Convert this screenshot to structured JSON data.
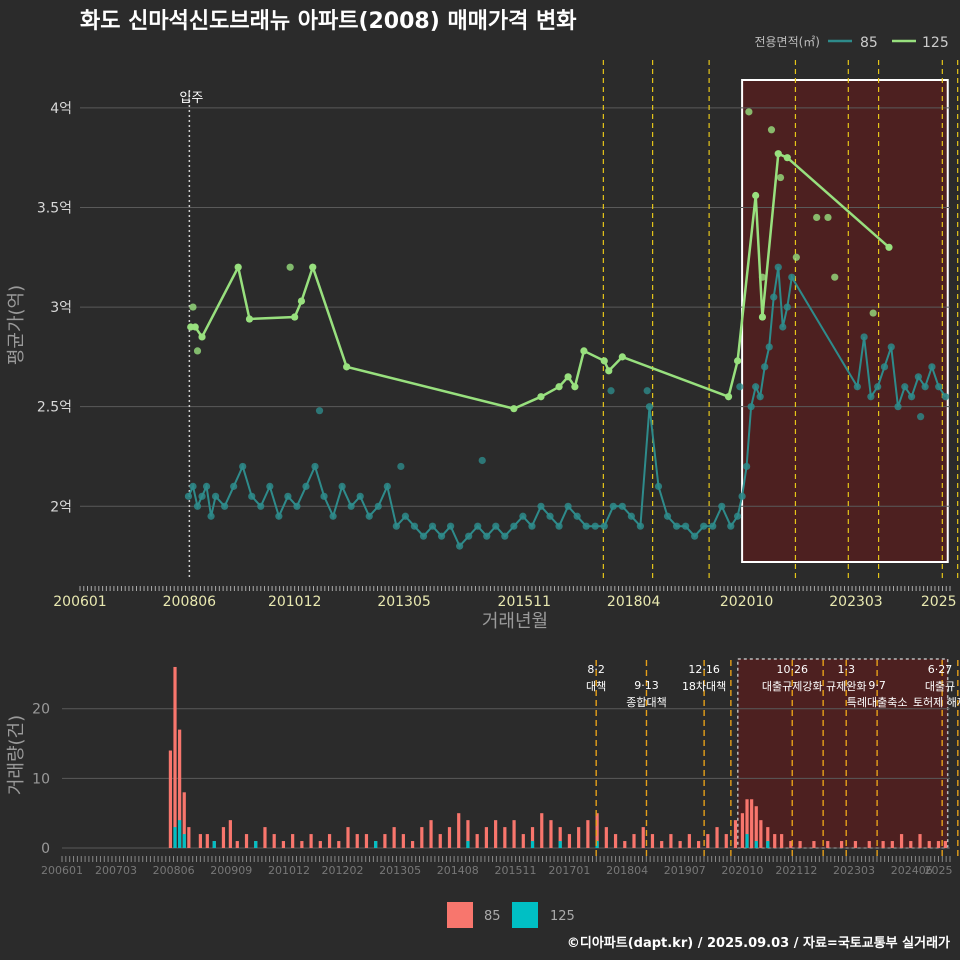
{
  "title": "화도 신마석신도브래뉴 아파트(2008) 매매가격 변화",
  "footer": "©디아파트(dapt.kr) / 2025.09.03 / 자료=국토교통부 실거래가",
  "colors": {
    "background": "#2b2b2b",
    "grid": "#5a5a5a",
    "series85": "#2e8b8b",
    "series125": "#98e07e",
    "bar85": "#f8766d",
    "bar125": "#00bfc4",
    "policy": "#e6c619",
    "policyBottom": "#e6a019",
    "highlight": "#5a1e1e",
    "boxWhite": "#ffffff"
  },
  "chart_data": [
    {
      "type": "line",
      "title": "화도 신마석신도브래뉴 아파트(2008) 매매가격 변화",
      "xlabel": "거래년월",
      "ylabel": "평균가(억)",
      "xlim": [
        2006.0,
        2025.25
      ],
      "ylim": [
        1.63,
        4.18
      ],
      "x_ticks": [
        {
          "v": 2006.0,
          "label": "200601"
        },
        {
          "v": 2008.42,
          "label": "200806"
        },
        {
          "v": 2010.75,
          "label": "201012"
        },
        {
          "v": 2013.17,
          "label": "201305"
        },
        {
          "v": 2015.83,
          "label": "201511"
        },
        {
          "v": 2018.25,
          "label": "201804"
        },
        {
          "v": 2020.75,
          "label": "202010"
        },
        {
          "v": 2023.17,
          "label": "202303"
        },
        {
          "v": 2025.0,
          "label": "2025"
        }
      ],
      "y_ticks": [
        {
          "v": 2.0,
          "label": "2억"
        },
        {
          "v": 2.5,
          "label": "2.5억"
        },
        {
          "v": 3.0,
          "label": "3억"
        },
        {
          "v": 3.5,
          "label": "3.5억"
        },
        {
          "v": 4.0,
          "label": "4억"
        }
      ],
      "legend_title": "전용면적(㎡)",
      "legend": [
        "85",
        "125"
      ],
      "move_in": {
        "x": 2008.42,
        "label": "입주"
      },
      "highlight_x": [
        2020.65,
        2025.2
      ],
      "policy_x": [
        2017.58,
        2018.67,
        2019.92,
        2021.83,
        2023.0,
        2023.67,
        2025.08,
        2025.42
      ],
      "series": [
        {
          "name": "125",
          "x": [
            2008.45,
            2008.55,
            2008.7,
            2009.5,
            2009.75,
            2010.75,
            2010.9,
            2011.15,
            2011.9,
            2015.6,
            2016.2,
            2016.6,
            2016.8,
            2016.95,
            2017.15,
            2017.6,
            2017.7,
            2018.0,
            2020.35,
            2020.55,
            2020.95,
            2021.1,
            2021.45,
            2021.65,
            2023.9
          ],
          "values": [
            2.9,
            2.9,
            2.85,
            3.2,
            2.94,
            2.95,
            3.03,
            3.2,
            2.7,
            2.49,
            2.55,
            2.6,
            2.65,
            2.6,
            2.78,
            2.73,
            2.68,
            2.75,
            2.55,
            2.73,
            3.56,
            2.95,
            3.77,
            3.75,
            3.3
          ]
        },
        {
          "name": "85",
          "x": [
            2008.4,
            2008.5,
            2008.6,
            2008.7,
            2008.8,
            2008.9,
            2009.0,
            2009.2,
            2009.4,
            2009.6,
            2009.8,
            2010.0,
            2010.2,
            2010.4,
            2010.6,
            2010.8,
            2011.0,
            2011.2,
            2011.4,
            2011.6,
            2011.8,
            2012.0,
            2012.2,
            2012.4,
            2012.6,
            2012.8,
            2013.0,
            2013.2,
            2013.4,
            2013.6,
            2013.8,
            2014.0,
            2014.2,
            2014.4,
            2014.6,
            2014.8,
            2015.0,
            2015.2,
            2015.4,
            2015.6,
            2015.8,
            2016.0,
            2016.2,
            2016.4,
            2016.6,
            2016.8,
            2017.0,
            2017.2,
            2017.4,
            2017.6,
            2017.8,
            2018.0,
            2018.2,
            2018.4,
            2018.6,
            2018.8,
            2019.0,
            2019.2,
            2019.4,
            2019.6,
            2019.8,
            2020.0,
            2020.2,
            2020.4,
            2020.55,
            2020.65,
            2020.75,
            2020.85,
            2020.95,
            2021.05,
            2021.15,
            2021.25,
            2021.35,
            2021.45,
            2021.55,
            2021.65,
            2021.75,
            2023.2,
            2023.35,
            2023.5,
            2023.65,
            2023.8,
            2023.95,
            2024.1,
            2024.25,
            2024.4,
            2024.55,
            2024.7,
            2024.85,
            2025.0,
            2025.15
          ],
          "values": [
            2.05,
            2.1,
            2.0,
            2.05,
            2.1,
            1.95,
            2.05,
            2.0,
            2.1,
            2.2,
            2.05,
            2.0,
            2.1,
            1.95,
            2.05,
            2.0,
            2.1,
            2.2,
            2.05,
            1.95,
            2.1,
            2.0,
            2.05,
            1.95,
            2.0,
            2.1,
            1.9,
            1.95,
            1.9,
            1.85,
            1.9,
            1.85,
            1.9,
            1.8,
            1.85,
            1.9,
            1.85,
            1.9,
            1.85,
            1.9,
            1.95,
            1.9,
            2.0,
            1.95,
            1.9,
            2.0,
            1.95,
            1.9,
            1.9,
            1.9,
            2.0,
            2.0,
            1.95,
            1.9,
            2.5,
            2.1,
            1.95,
            1.9,
            1.9,
            1.85,
            1.9,
            1.9,
            2.0,
            1.9,
            1.95,
            2.05,
            2.2,
            2.5,
            2.6,
            2.55,
            2.7,
            2.8,
            3.05,
            3.2,
            2.9,
            3.0,
            3.15,
            2.6,
            2.85,
            2.55,
            2.6,
            2.7,
            2.8,
            2.5,
            2.6,
            2.55,
            2.65,
            2.6,
            2.7,
            2.6,
            2.55
          ]
        }
      ],
      "scatter_extra": {
        "x": [
          2008.5,
          2008.6,
          2010.65,
          2011.3,
          2013.1,
          2014.9,
          2017.75,
          2018.55,
          2020.6,
          2020.8,
          2021.1,
          2021.3,
          2021.5,
          2021.85,
          2022.3,
          2022.55,
          2022.7,
          2023.55,
          2024.6
        ],
        "values": [
          3.0,
          2.78,
          3.2,
          2.48,
          2.2,
          2.23,
          2.58,
          2.58,
          2.6,
          3.98,
          3.15,
          3.89,
          3.65,
          3.25,
          3.45,
          3.45,
          3.15,
          2.97,
          2.45
        ]
      }
    },
    {
      "type": "bar",
      "ylabel": "거래량(건)",
      "xlim": [
        2006.0,
        2025.25
      ],
      "ylim": [
        0,
        27
      ],
      "y_ticks": [
        0,
        10,
        20
      ],
      "x_ticks": [
        {
          "v": 2006.0,
          "label": "200601"
        },
        {
          "v": 2007.17,
          "label": "200703"
        },
        {
          "v": 2008.42,
          "label": "200806"
        },
        {
          "v": 2009.67,
          "label": "200909"
        },
        {
          "v": 2010.92,
          "label": "201012"
        },
        {
          "v": 2012.08,
          "label": "201202"
        },
        {
          "v": 2013.33,
          "label": "201305"
        },
        {
          "v": 2014.58,
          "label": "201408"
        },
        {
          "v": 2015.83,
          "label": "201511"
        },
        {
          "v": 2017.0,
          "label": "201701"
        },
        {
          "v": 2018.25,
          "label": "201804"
        },
        {
          "v": 2019.5,
          "label": "201907"
        },
        {
          "v": 2020.75,
          "label": "202010"
        },
        {
          "v": 2021.92,
          "label": "202112"
        },
        {
          "v": 2023.17,
          "label": "202303"
        },
        {
          "v": 2024.42,
          "label": "202406"
        },
        {
          "v": 2025.0,
          "label": "2025"
        }
      ],
      "legend": [
        "85",
        "125"
      ],
      "highlight_x": [
        2020.65,
        2025.2
      ],
      "policy": [
        {
          "x": 2017.58,
          "date": "8·2",
          "name": "대책"
        },
        {
          "x": 2018.67,
          "date": "9·13",
          "name": "종합대책"
        },
        {
          "x": 2019.92,
          "date": "12·16",
          "name": "18차대책"
        },
        {
          "x": 2020.5,
          "date": "",
          "name": ""
        },
        {
          "x": 2021.83,
          "date": "10·26",
          "name": "대출규제강화"
        },
        {
          "x": 2022.5,
          "date": "",
          "name": ""
        },
        {
          "x": 2023.0,
          "date": "1·3",
          "name": "규제완화"
        },
        {
          "x": 2023.67,
          "date": "9·7",
          "name": "특례대출축소"
        },
        {
          "x": 2025.08,
          "date": "6·27",
          "name": "대출규"
        },
        {
          "x": 2025.42,
          "date": "",
          "name": "토허제 해제"
        }
      ],
      "series": [
        {
          "name": "85",
          "x": [
            2008.35,
            2008.45,
            2008.55,
            2008.65,
            2008.75,
            2009.0,
            2009.15,
            2009.3,
            2009.5,
            2009.65,
            2009.8,
            2010.0,
            2010.2,
            2010.4,
            2010.6,
            2010.8,
            2011.0,
            2011.2,
            2011.4,
            2011.6,
            2011.8,
            2012.0,
            2012.2,
            2012.4,
            2012.6,
            2012.8,
            2013.0,
            2013.2,
            2013.4,
            2013.6,
            2013.8,
            2014.0,
            2014.2,
            2014.4,
            2014.6,
            2014.8,
            2015.0,
            2015.2,
            2015.4,
            2015.6,
            2015.8,
            2016.0,
            2016.2,
            2016.4,
            2016.6,
            2016.8,
            2017.0,
            2017.2,
            2017.4,
            2017.6,
            2017.8,
            2018.0,
            2018.2,
            2018.4,
            2018.6,
            2018.8,
            2019.0,
            2019.2,
            2019.4,
            2019.6,
            2019.8,
            2020.0,
            2020.2,
            2020.4,
            2020.6,
            2020.75,
            2020.85,
            2020.95,
            2021.05,
            2021.15,
            2021.3,
            2021.45,
            2021.6,
            2021.8,
            2022.0,
            2022.3,
            2022.6,
            2022.9,
            2023.2,
            2023.5,
            2023.8,
            2024.0,
            2024.2,
            2024.4,
            2024.6,
            2024.8,
            2025.0,
            2025.15
          ],
          "values": [
            14,
            26,
            17,
            8,
            3,
            2,
            2,
            1,
            3,
            4,
            1,
            2,
            1,
            3,
            2,
            1,
            2,
            1,
            2,
            1,
            2,
            1,
            3,
            2,
            2,
            1,
            2,
            3,
            2,
            1,
            3,
            4,
            2,
            3,
            5,
            4,
            2,
            3,
            4,
            3,
            4,
            2,
            3,
            5,
            4,
            3,
            2,
            3,
            4,
            5,
            3,
            2,
            1,
            2,
            3,
            2,
            1,
            2,
            1,
            2,
            1,
            2,
            3,
            2,
            4,
            5,
            7,
            7,
            6,
            4,
            3,
            2,
            2,
            1,
            1,
            1,
            1,
            1,
            1,
            1,
            1,
            1,
            2,
            1,
            2,
            1,
            1,
            1
          ]
        },
        {
          "name": "125",
          "x": [
            2008.45,
            2008.55,
            2008.65,
            2009.3,
            2010.2,
            2012.8,
            2014.8,
            2016.2,
            2016.8,
            2017.6,
            2020.85,
            2021.05,
            2021.3
          ],
          "values": [
            3,
            4,
            2,
            1,
            1,
            1,
            1,
            1,
            1,
            1,
            2,
            1,
            1
          ]
        }
      ]
    }
  ]
}
